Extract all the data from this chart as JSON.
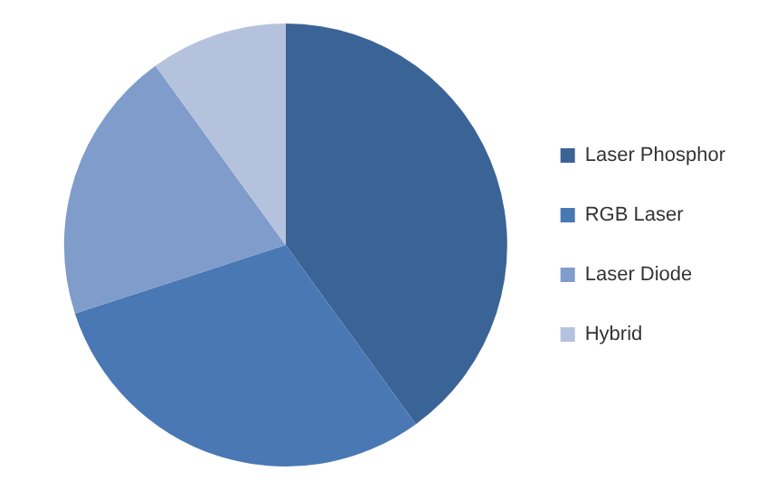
{
  "chart_data": {
    "type": "pie",
    "categories": [
      "Laser Phosphor",
      "RGB Laser",
      "Laser Diode",
      "Hybrid"
    ],
    "values": [
      40,
      30,
      20,
      10
    ],
    "colors": [
      "#3b6496",
      "#4a78b4",
      "#7f9ccb",
      "#b4c2de"
    ],
    "legend": "right"
  }
}
